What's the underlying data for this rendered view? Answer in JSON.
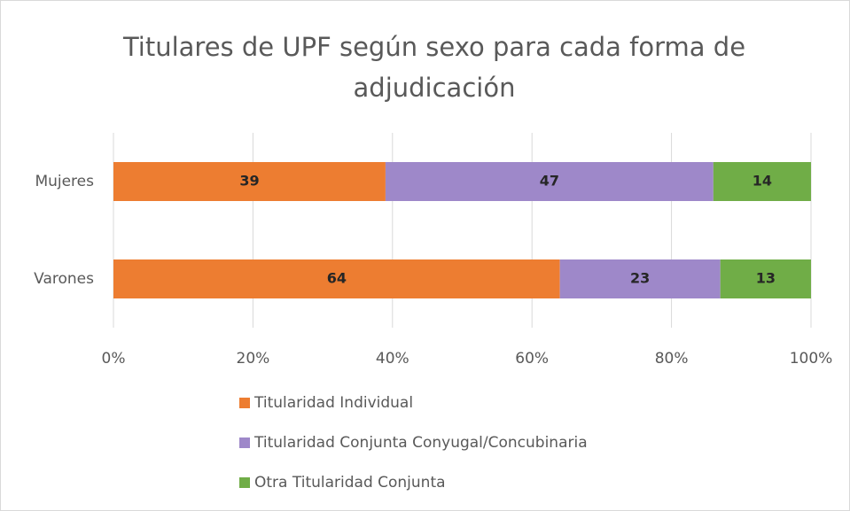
{
  "chart_data": {
    "type": "stacked_barh",
    "title": "Titulares de UPF según sexo para cada forma de adjudicación",
    "categories": [
      "Mujeres",
      "Varones"
    ],
    "series": [
      {
        "name": "Titularidad Individual",
        "color": "#ed7d31",
        "values": [
          39,
          64
        ]
      },
      {
        "name": "Titularidad Conjunta Conyugal/Concubinaria",
        "color": "#9e88c9",
        "values": [
          47,
          23
        ]
      },
      {
        "name": "Otra Titularidad Conjunta",
        "color": "#70ad47",
        "values": [
          14,
          13
        ]
      }
    ],
    "xlim": [
      0,
      100
    ],
    "xticks": [
      {
        "value": 0,
        "label": "0%"
      },
      {
        "value": 20,
        "label": "20%"
      },
      {
        "value": 40,
        "label": "40%"
      },
      {
        "value": 60,
        "label": "60%"
      },
      {
        "value": 80,
        "label": "80%"
      },
      {
        "value": 100,
        "label": "100%"
      }
    ],
    "grid": true,
    "legend": "bottom"
  }
}
